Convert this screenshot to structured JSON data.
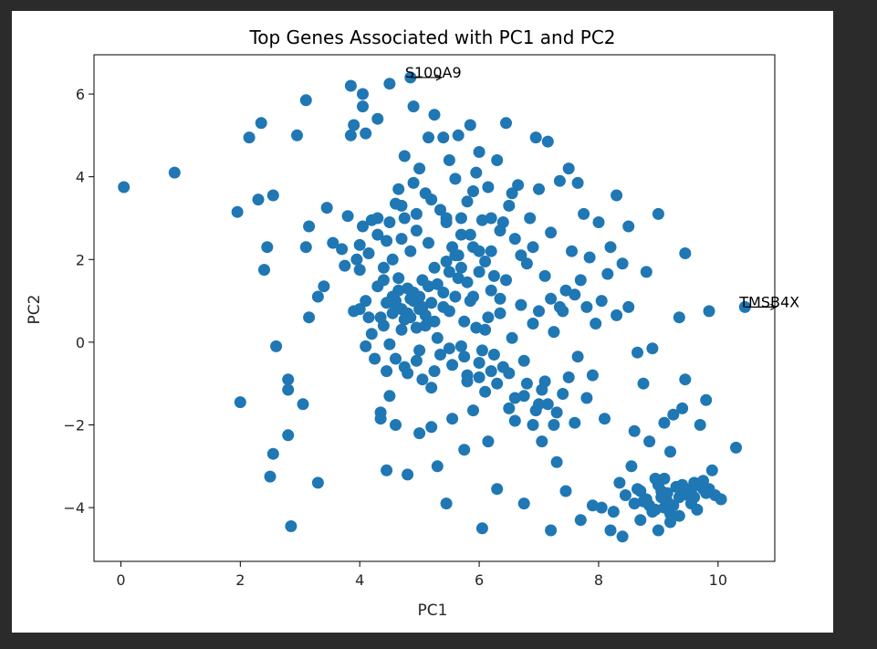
{
  "chart_data": {
    "type": "scatter",
    "title": "Top Genes Associated with PC1 and PC2",
    "xlabel": "PC1",
    "ylabel": "PC2",
    "xlim": [
      -0.45,
      10.95
    ],
    "ylim": [
      -5.3,
      6.95
    ],
    "xticks": [
      0,
      2,
      4,
      6,
      8,
      10
    ],
    "yticks": [
      -4,
      -2,
      0,
      2,
      4,
      6
    ],
    "grid": false,
    "marker_color": "#1f77b4",
    "annotations": [
      {
        "text": "S100A9",
        "x": 4.85,
        "y": 6.4
      },
      {
        "text": "TMSB4X",
        "x": 10.45,
        "y": 0.85
      }
    ],
    "points": [
      [
        0.05,
        3.75
      ],
      [
        0.9,
        4.1
      ],
      [
        1.95,
        3.15
      ],
      [
        2.0,
        -1.45
      ],
      [
        2.15,
        4.95
      ],
      [
        2.3,
        3.45
      ],
      [
        2.35,
        5.3
      ],
      [
        2.4,
        1.75
      ],
      [
        2.45,
        2.3
      ],
      [
        2.5,
        -3.25
      ],
      [
        2.55,
        -2.7
      ],
      [
        2.55,
        3.55
      ],
      [
        2.6,
        -0.1
      ],
      [
        2.8,
        -0.9
      ],
      [
        2.8,
        -1.15
      ],
      [
        2.8,
        -2.25
      ],
      [
        2.85,
        -4.45
      ],
      [
        2.95,
        5.0
      ],
      [
        3.05,
        -1.5
      ],
      [
        3.1,
        2.3
      ],
      [
        3.1,
        5.85
      ],
      [
        3.15,
        2.8
      ],
      [
        3.15,
        0.6
      ],
      [
        3.3,
        1.1
      ],
      [
        3.3,
        -3.4
      ],
      [
        3.4,
        1.35
      ],
      [
        3.45,
        3.25
      ],
      [
        3.55,
        2.4
      ],
      [
        3.7,
        2.25
      ],
      [
        3.75,
        1.85
      ],
      [
        3.8,
        3.05
      ],
      [
        3.85,
        5.0
      ],
      [
        3.85,
        6.2
      ],
      [
        3.9,
        0.75
      ],
      [
        3.9,
        5.25
      ],
      [
        3.95,
        2.0
      ],
      [
        4.0,
        1.75
      ],
      [
        4.0,
        2.35
      ],
      [
        4.05,
        2.8
      ],
      [
        4.05,
        6.0
      ],
      [
        4.05,
        5.7
      ],
      [
        4.1,
        1.0
      ],
      [
        4.1,
        5.05
      ],
      [
        4.1,
        -0.1
      ],
      [
        4.15,
        2.15
      ],
      [
        4.2,
        2.95
      ],
      [
        4.2,
        0.2
      ],
      [
        4.3,
        3.0
      ],
      [
        4.3,
        5.4
      ],
      [
        4.3,
        1.35
      ],
      [
        4.35,
        -1.7
      ],
      [
        4.35,
        -1.85
      ],
      [
        4.4,
        1.8
      ],
      [
        4.4,
        0.4
      ],
      [
        4.45,
        -0.7
      ],
      [
        4.45,
        2.45
      ],
      [
        4.45,
        -3.1
      ],
      [
        4.5,
        6.25
      ],
      [
        4.5,
        -1.3
      ],
      [
        4.55,
        1.1
      ],
      [
        4.55,
        2.0
      ],
      [
        4.6,
        3.35
      ],
      [
        4.6,
        0.9
      ],
      [
        4.6,
        -2.0
      ],
      [
        4.65,
        3.7
      ],
      [
        4.65,
        1.55
      ],
      [
        4.7,
        0.3
      ],
      [
        4.7,
        2.5
      ],
      [
        4.75,
        -0.6
      ],
      [
        4.75,
        4.5
      ],
      [
        4.75,
        3.0
      ],
      [
        4.8,
        1.3
      ],
      [
        4.8,
        -3.2
      ],
      [
        4.85,
        0.6
      ],
      [
        4.85,
        2.2
      ],
      [
        4.85,
        6.4
      ],
      [
        4.9,
        1.0
      ],
      [
        4.9,
        3.85
      ],
      [
        4.9,
        5.7
      ],
      [
        4.95,
        -0.45
      ],
      [
        4.95,
        2.7
      ],
      [
        5.0,
        0.8
      ],
      [
        5.0,
        4.2
      ],
      [
        5.0,
        -2.2
      ],
      [
        5.05,
        1.5
      ],
      [
        5.05,
        -0.9
      ],
      [
        5.1,
        3.6
      ],
      [
        5.1,
        0.4
      ],
      [
        5.15,
        4.95
      ],
      [
        5.15,
        2.4
      ],
      [
        5.2,
        -1.1
      ],
      [
        5.2,
        -2.05
      ],
      [
        5.25,
        1.8
      ],
      [
        5.25,
        5.5
      ],
      [
        5.3,
        0.1
      ],
      [
        5.3,
        -3.0
      ],
      [
        5.35,
        3.2
      ],
      [
        5.35,
        -0.3
      ],
      [
        5.4,
        4.95
      ],
      [
        5.4,
        1.2
      ],
      [
        5.45,
        -3.9
      ],
      [
        5.45,
        2.9
      ],
      [
        5.5,
        4.4
      ],
      [
        5.5,
        0.75
      ],
      [
        5.55,
        -0.55
      ],
      [
        5.55,
        -1.85
      ],
      [
        5.6,
        2.1
      ],
      [
        5.6,
        3.95
      ],
      [
        5.65,
        5.0
      ],
      [
        5.65,
        1.55
      ],
      [
        5.7,
        -0.1
      ],
      [
        5.7,
        2.6
      ],
      [
        5.75,
        -2.6
      ],
      [
        5.75,
        0.5
      ],
      [
        5.8,
        3.4
      ],
      [
        5.8,
        -0.8
      ],
      [
        5.85,
        1.0
      ],
      [
        5.85,
        5.25
      ],
      [
        5.9,
        2.3
      ],
      [
        5.9,
        -1.65
      ],
      [
        5.95,
        4.1
      ],
      [
        6.0,
        1.7
      ],
      [
        6.0,
        -0.5
      ],
      [
        6.0,
        4.6
      ],
      [
        6.05,
        -4.5
      ],
      [
        6.05,
        2.95
      ],
      [
        6.1,
        0.3
      ],
      [
        6.1,
        -1.2
      ],
      [
        6.15,
        3.75
      ],
      [
        6.15,
        -2.4
      ],
      [
        6.2,
        1.25
      ],
      [
        6.2,
        2.2
      ],
      [
        6.25,
        -0.3
      ],
      [
        6.3,
        -3.55
      ],
      [
        6.3,
        4.4
      ],
      [
        6.35,
        0.7
      ],
      [
        6.35,
        2.7
      ],
      [
        6.4,
        -0.6
      ],
      [
        6.45,
        1.5
      ],
      [
        6.45,
        5.3
      ],
      [
        6.5,
        3.3
      ],
      [
        6.5,
        -1.6
      ],
      [
        6.55,
        0.1
      ],
      [
        6.6,
        2.5
      ],
      [
        6.6,
        -1.35
      ],
      [
        6.65,
        3.8
      ],
      [
        6.7,
        0.9
      ],
      [
        6.75,
        -0.45
      ],
      [
        6.75,
        -3.9
      ],
      [
        6.8,
        1.9
      ],
      [
        6.8,
        -1.0
      ],
      [
        6.85,
        3.0
      ],
      [
        6.9,
        0.45
      ],
      [
        6.9,
        -2.0
      ],
      [
        6.95,
        4.95
      ],
      [
        7.0,
        0.75
      ],
      [
        7.0,
        -1.5
      ],
      [
        7.0,
        3.7
      ],
      [
        7.05,
        -2.4
      ],
      [
        7.1,
        1.6
      ],
      [
        7.1,
        -0.95
      ],
      [
        7.15,
        4.85
      ],
      [
        7.2,
        -4.55
      ],
      [
        7.2,
        2.65
      ],
      [
        7.25,
        0.25
      ],
      [
        7.3,
        -1.7
      ],
      [
        7.3,
        -2.9
      ],
      [
        7.35,
        0.85
      ],
      [
        7.35,
        3.9
      ],
      [
        7.4,
        -1.25
      ],
      [
        7.45,
        -3.6
      ],
      [
        7.45,
        1.25
      ],
      [
        7.5,
        -0.85
      ],
      [
        7.5,
        4.2
      ],
      [
        7.55,
        2.2
      ],
      [
        7.6,
        -1.95
      ],
      [
        7.65,
        -0.35
      ],
      [
        7.65,
        3.85
      ],
      [
        7.7,
        1.5
      ],
      [
        7.7,
        -4.3
      ],
      [
        7.75,
        3.1
      ],
      [
        7.8,
        -1.35
      ],
      [
        7.85,
        2.05
      ],
      [
        7.9,
        -3.95
      ],
      [
        7.9,
        -0.8
      ],
      [
        7.95,
        0.45
      ],
      [
        8.0,
        2.9
      ],
      [
        8.05,
        -4.0
      ],
      [
        8.05,
        1.0
      ],
      [
        8.1,
        -1.85
      ],
      [
        8.15,
        1.65
      ],
      [
        8.2,
        -4.55
      ],
      [
        8.2,
        2.3
      ],
      [
        8.25,
        -4.1
      ],
      [
        8.3,
        0.65
      ],
      [
        8.3,
        3.55
      ],
      [
        8.35,
        -3.4
      ],
      [
        8.4,
        -4.7
      ],
      [
        8.4,
        1.9
      ],
      [
        8.45,
        -3.7
      ],
      [
        8.5,
        0.85
      ],
      [
        8.5,
        2.8
      ],
      [
        8.55,
        -3.0
      ],
      [
        8.6,
        -2.15
      ],
      [
        8.65,
        -0.25
      ],
      [
        8.65,
        -3.55
      ],
      [
        8.7,
        -4.3
      ],
      [
        8.75,
        -1.0
      ],
      [
        8.8,
        1.7
      ],
      [
        8.8,
        -3.8
      ],
      [
        8.85,
        -2.4
      ],
      [
        8.9,
        -4.1
      ],
      [
        8.9,
        -0.15
      ],
      [
        8.95,
        -3.3
      ],
      [
        9.0,
        -4.55
      ],
      [
        9.0,
        3.1
      ],
      [
        9.05,
        -3.6
      ],
      [
        9.1,
        -1.95
      ],
      [
        9.1,
        -4.0
      ],
      [
        9.15,
        -3.85
      ],
      [
        9.2,
        -2.65
      ],
      [
        9.2,
        -4.35
      ],
      [
        9.25,
        -1.75
      ],
      [
        9.3,
        -3.5
      ],
      [
        9.35,
        0.6
      ],
      [
        9.35,
        -4.2
      ],
      [
        9.4,
        -1.6
      ],
      [
        9.45,
        -0.9
      ],
      [
        9.45,
        2.15
      ],
      [
        9.5,
        -3.7
      ],
      [
        9.55,
        -3.9
      ],
      [
        9.6,
        -3.4
      ],
      [
        9.65,
        -4.05
      ],
      [
        9.7,
        -2.0
      ],
      [
        9.75,
        -3.55
      ],
      [
        9.8,
        -1.4
      ],
      [
        9.85,
        0.75
      ],
      [
        9.9,
        -3.1
      ],
      [
        9.95,
        -3.7
      ],
      [
        10.05,
        -3.8
      ],
      [
        10.3,
        -2.55
      ],
      [
        10.45,
        0.85
      ],
      [
        8.75,
        -3.85
      ],
      [
        8.85,
        -3.95
      ],
      [
        8.95,
        -4.05
      ],
      [
        9.05,
        -3.75
      ],
      [
        9.15,
        -3.65
      ],
      [
        9.25,
        -3.95
      ],
      [
        9.35,
        -3.75
      ],
      [
        9.45,
        -3.55
      ],
      [
        9.55,
        -3.65
      ],
      [
        9.65,
        -3.45
      ],
      [
        9.75,
        -3.35
      ],
      [
        9.85,
        -3.55
      ],
      [
        8.7,
        -3.6
      ],
      [
        8.6,
        -3.9
      ],
      [
        9.0,
        -3.45
      ],
      [
        9.2,
        -4.15
      ],
      [
        9.4,
        -3.45
      ],
      [
        9.6,
        -3.75
      ],
      [
        9.8,
        -3.65
      ],
      [
        9.1,
        -3.3
      ],
      [
        4.6,
        1.0
      ],
      [
        4.7,
        0.8
      ],
      [
        4.8,
        0.7
      ],
      [
        4.9,
        1.2
      ],
      [
        5.0,
        1.1
      ],
      [
        5.1,
        0.65
      ],
      [
        5.2,
        0.95
      ],
      [
        4.65,
        1.25
      ],
      [
        4.75,
        0.55
      ],
      [
        4.85,
        1.05
      ],
      [
        4.95,
        0.35
      ],
      [
        5.05,
        0.85
      ],
      [
        5.15,
        1.35
      ],
      [
        5.25,
        0.5
      ],
      [
        4.55,
        0.7
      ],
      [
        4.45,
        0.95
      ],
      [
        4.4,
        1.5
      ],
      [
        4.35,
        0.6
      ],
      [
        5.3,
        1.4
      ],
      [
        5.4,
        0.85
      ],
      [
        5.5,
        1.7
      ],
      [
        5.6,
        1.1
      ],
      [
        5.7,
        1.8
      ],
      [
        5.8,
        1.45
      ],
      [
        5.9,
        1.1
      ],
      [
        6.0,
        2.2
      ],
      [
        5.55,
        2.3
      ],
      [
        5.65,
        2.1
      ],
      [
        5.85,
        2.6
      ],
      [
        5.45,
        1.95
      ],
      [
        6.1,
        1.95
      ],
      [
        6.25,
        1.6
      ],
      [
        6.35,
        1.05
      ],
      [
        6.15,
        0.6
      ],
      [
        5.95,
        0.35
      ],
      [
        6.05,
        -0.2
      ],
      [
        5.75,
        -0.35
      ],
      [
        5.5,
        -0.15
      ],
      [
        5.25,
        -0.7
      ],
      [
        5.0,
        -0.2
      ],
      [
        4.8,
        -0.75
      ],
      [
        4.6,
        -0.4
      ],
      [
        4.5,
        -0.05
      ],
      [
        4.25,
        -0.4
      ],
      [
        4.15,
        0.6
      ],
      [
        4.0,
        0.8
      ],
      [
        4.3,
        2.6
      ],
      [
        4.5,
        2.9
      ],
      [
        4.7,
        3.3
      ],
      [
        4.95,
        3.1
      ],
      [
        5.2,
        3.45
      ],
      [
        5.45,
        3.0
      ],
      [
        5.7,
        3.0
      ],
      [
        5.9,
        3.65
      ],
      [
        6.2,
        3.0
      ],
      [
        6.4,
        2.9
      ],
      [
        6.55,
        3.6
      ],
      [
        6.7,
        2.1
      ],
      [
        6.9,
        2.3
      ],
      [
        7.2,
        1.05
      ],
      [
        7.4,
        0.75
      ],
      [
        7.6,
        1.15
      ],
      [
        7.8,
        0.85
      ],
      [
        6.5,
        -0.75
      ],
      [
        6.3,
        -1.0
      ],
      [
        6.2,
        -0.7
      ],
      [
        6.0,
        -0.85
      ],
      [
        5.8,
        -0.95
      ],
      [
        6.6,
        -1.9
      ],
      [
        6.95,
        -1.65
      ],
      [
        7.05,
        -1.15
      ],
      [
        7.15,
        -1.5
      ],
      [
        7.25,
        -2.0
      ],
      [
        6.75,
        -1.3
      ]
    ]
  }
}
